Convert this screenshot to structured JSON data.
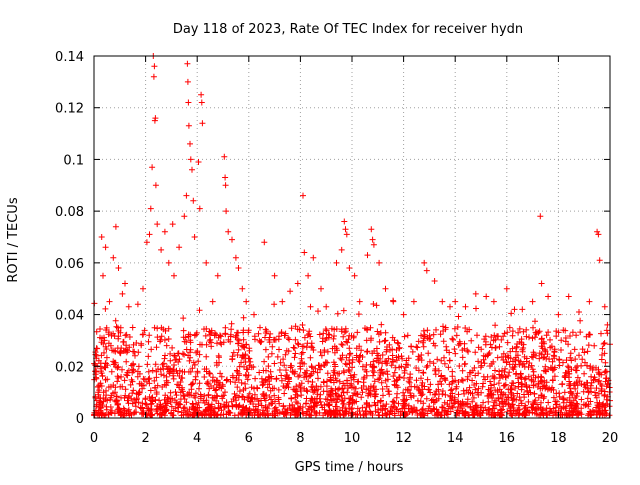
{
  "chart_data": {
    "type": "scatter",
    "title": "Day 118 of 2023, Rate Of TEC Index for receiver hydn",
    "xlabel": "GPS time / hours",
    "ylabel": "ROTI / TECUs",
    "xlim": [
      0,
      20
    ],
    "ylim": [
      0,
      0.14
    ],
    "grid": true,
    "marker": "+",
    "x_ticks": [
      0,
      2,
      4,
      6,
      8,
      10,
      12,
      14,
      16,
      18,
      20
    ],
    "y_ticks": [
      0,
      0.02,
      0.04,
      0.06,
      0.08,
      0.1,
      0.12,
      0.14
    ],
    "x_tick_labels": [
      "0",
      "2",
      "4",
      "6",
      "8",
      "10",
      "12",
      "14",
      "16",
      "18",
      "20"
    ],
    "y_tick_labels": [
      "0",
      "0.02",
      "0.04",
      "0.06",
      "0.08",
      "0.1",
      "0.12",
      "0.14"
    ],
    "series": [
      {
        "name": "ROTI",
        "color": "#ff0000",
        "points": [
          [
            0.05,
            0.018
          ],
          [
            0.1,
            0.024
          ],
          [
            0.15,
            0.012
          ],
          [
            0.3,
            0.07
          ],
          [
            0.35,
            0.055
          ],
          [
            0.45,
            0.066
          ],
          [
            0.6,
            0.045
          ],
          [
            0.75,
            0.062
          ],
          [
            0.85,
            0.074
          ],
          [
            0.95,
            0.058
          ],
          [
            1.1,
            0.048
          ],
          [
            1.2,
            0.052
          ],
          [
            1.35,
            0.043
          ],
          [
            1.5,
            0.035
          ],
          [
            1.7,
            0.044
          ],
          [
            1.9,
            0.05
          ],
          [
            2.05,
            0.068
          ],
          [
            2.15,
            0.071
          ],
          [
            2.2,
            0.081
          ],
          [
            2.25,
            0.097
          ],
          [
            2.3,
            0.14
          ],
          [
            2.32,
            0.132
          ],
          [
            2.34,
            0.136
          ],
          [
            2.36,
            0.115
          ],
          [
            2.38,
            0.116
          ],
          [
            2.4,
            0.09
          ],
          [
            2.45,
            0.075
          ],
          [
            2.6,
            0.065
          ],
          [
            2.75,
            0.072
          ],
          [
            2.9,
            0.06
          ],
          [
            3.05,
            0.075
          ],
          [
            3.1,
            0.055
          ],
          [
            3.3,
            0.066
          ],
          [
            3.5,
            0.078
          ],
          [
            3.58,
            0.086
          ],
          [
            3.62,
            0.137
          ],
          [
            3.64,
            0.13
          ],
          [
            3.66,
            0.122
          ],
          [
            3.68,
            0.113
          ],
          [
            3.72,
            0.106
          ],
          [
            3.75,
            0.1
          ],
          [
            3.8,
            0.096
          ],
          [
            3.85,
            0.084
          ],
          [
            3.9,
            0.07
          ],
          [
            4.05,
            0.099
          ],
          [
            4.1,
            0.081
          ],
          [
            4.15,
            0.125
          ],
          [
            4.18,
            0.122
          ],
          [
            4.2,
            0.114
          ],
          [
            4.35,
            0.06
          ],
          [
            4.6,
            0.045
          ],
          [
            4.8,
            0.055
          ],
          [
            5.05,
            0.101
          ],
          [
            5.08,
            0.093
          ],
          [
            5.1,
            0.09
          ],
          [
            5.12,
            0.08
          ],
          [
            5.2,
            0.072
          ],
          [
            5.35,
            0.069
          ],
          [
            5.5,
            0.062
          ],
          [
            5.6,
            0.058
          ],
          [
            5.75,
            0.05
          ],
          [
            5.9,
            0.045
          ],
          [
            6.2,
            0.04
          ],
          [
            6.6,
            0.068
          ],
          [
            7.0,
            0.055
          ],
          [
            7.3,
            0.045
          ],
          [
            7.6,
            0.049
          ],
          [
            7.9,
            0.052
          ],
          [
            8.1,
            0.086
          ],
          [
            8.15,
            0.064
          ],
          [
            8.3,
            0.055
          ],
          [
            8.5,
            0.062
          ],
          [
            8.8,
            0.05
          ],
          [
            9.0,
            0.043
          ],
          [
            9.4,
            0.06
          ],
          [
            9.6,
            0.065
          ],
          [
            9.7,
            0.076
          ],
          [
            9.75,
            0.073
          ],
          [
            9.8,
            0.071
          ],
          [
            9.9,
            0.058
          ],
          [
            10.1,
            0.055
          ],
          [
            10.3,
            0.045
          ],
          [
            10.6,
            0.063
          ],
          [
            10.75,
            0.073
          ],
          [
            10.8,
            0.069
          ],
          [
            10.85,
            0.067
          ],
          [
            11.05,
            0.06
          ],
          [
            11.3,
            0.05
          ],
          [
            11.6,
            0.045
          ],
          [
            12.0,
            0.04
          ],
          [
            12.4,
            0.045
          ],
          [
            12.8,
            0.06
          ],
          [
            12.9,
            0.057
          ],
          [
            13.2,
            0.053
          ],
          [
            13.5,
            0.045
          ],
          [
            13.8,
            0.043
          ],
          [
            14.0,
            0.045
          ],
          [
            14.4,
            0.043
          ],
          [
            14.8,
            0.048
          ],
          [
            15.2,
            0.047
          ],
          [
            15.5,
            0.045
          ],
          [
            16.0,
            0.05
          ],
          [
            16.3,
            0.042
          ],
          [
            16.6,
            0.042
          ],
          [
            17.0,
            0.045
          ],
          [
            17.3,
            0.078
          ],
          [
            17.35,
            0.052
          ],
          [
            17.6,
            0.047
          ],
          [
            18.0,
            0.04
          ],
          [
            18.4,
            0.047
          ],
          [
            18.8,
            0.041
          ],
          [
            19.2,
            0.045
          ],
          [
            19.5,
            0.072
          ],
          [
            19.55,
            0.071
          ],
          [
            19.6,
            0.061
          ],
          [
            19.8,
            0.043
          ],
          [
            19.9,
            0.036
          ]
        ]
      }
    ]
  }
}
